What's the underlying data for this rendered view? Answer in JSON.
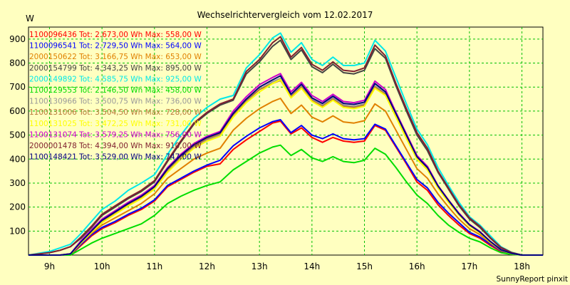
{
  "chart_data": {
    "type": "line",
    "title": "Wechselrichtervergleich vom 12.02.2017",
    "ylabel": "W",
    "xlabel": "",
    "footer": "SunnyReport pinxit",
    "xlim": [
      8.6,
      18.4
    ],
    "ylim": [
      0,
      950
    ],
    "x_ticks": [
      9,
      10,
      11,
      12,
      13,
      14,
      15,
      16,
      17,
      18
    ],
    "x_tick_labels": [
      "9h",
      "10h",
      "11h",
      "12h",
      "13h",
      "14h",
      "15h",
      "16h",
      "17h",
      "18h"
    ],
    "y_ticks": [
      100,
      200,
      300,
      400,
      500,
      600,
      700,
      800,
      900
    ],
    "y_tick_labels": [
      "100",
      "200",
      "300",
      "400",
      "500",
      "600",
      "700",
      "800",
      "900"
    ],
    "grid": true,
    "legend_position": "top-left",
    "x": [
      8.6,
      9.0,
      9.2,
      9.4,
      9.6,
      9.8,
      10.0,
      10.25,
      10.5,
      10.75,
      11.0,
      11.25,
      11.5,
      11.75,
      12.0,
      12.25,
      12.5,
      12.75,
      13.0,
      13.25,
      13.4,
      13.6,
      13.8,
      14.0,
      14.2,
      14.4,
      14.6,
      14.8,
      15.0,
      15.2,
      15.4,
      15.6,
      15.8,
      16.0,
      16.2,
      16.4,
      16.6,
      16.8,
      17.0,
      17.2,
      17.4,
      17.6,
      17.8,
      18.0,
      18.2,
      18.4
    ],
    "series": [
      {
        "name": "1100096436 Tot: 2.673,00 Wh Max: 558,00 W",
        "color": "#ff0000",
        "values": [
          0,
          0,
          0,
          0,
          40,
          80,
          110,
          135,
          165,
          190,
          225,
          285,
          315,
          345,
          370,
          380,
          440,
          480,
          515,
          550,
          558,
          505,
          530,
          490,
          470,
          490,
          475,
          470,
          475,
          540,
          520,
          450,
          380,
          305,
          270,
          210,
          165,
          125,
          90,
          70,
          40,
          15,
          5,
          0,
          0,
          0
        ]
      },
      {
        "name": "1100096541 Tot: 2.729,50 Wh Max: 564,00 W",
        "color": "#0000ff",
        "values": [
          0,
          0,
          0,
          0,
          45,
          85,
          115,
          140,
          170,
          195,
          230,
          290,
          320,
          350,
          375,
          395,
          455,
          495,
          530,
          556,
          564,
          510,
          540,
          500,
          485,
          505,
          485,
          480,
          485,
          545,
          525,
          455,
          385,
          315,
          280,
          220,
          175,
          135,
          95,
          75,
          45,
          18,
          6,
          0,
          0,
          0
        ]
      },
      {
        "name": "2000150622 Tot: 3.166,75 Wh Max: 653,00 W",
        "color": "#e08000",
        "values": [
          0,
          0,
          0,
          0,
          50,
          90,
          125,
          155,
          185,
          215,
          255,
          320,
          360,
          400,
          425,
          445,
          520,
          570,
          610,
          640,
          653,
          590,
          625,
          575,
          555,
          580,
          555,
          550,
          560,
          630,
          600,
          520,
          440,
          360,
          320,
          255,
          200,
          150,
          110,
          85,
          50,
          20,
          6,
          0,
          0,
          0
        ]
      },
      {
        "name": "2000154799 Tot: 4.343,25 Wh Max: 895,00 W",
        "color": "#444444",
        "values": [
          0,
          10,
          20,
          35,
          70,
          115,
          165,
          200,
          235,
          265,
          305,
          390,
          470,
          545,
          590,
          625,
          645,
          755,
          805,
          870,
          895,
          815,
          855,
          785,
          760,
          795,
          760,
          755,
          770,
          860,
          820,
          705,
          600,
          500,
          435,
          345,
          275,
          205,
          150,
          115,
          70,
          30,
          10,
          0,
          0,
          0
        ]
      },
      {
        "name": "2000149892 Tot: 4.585,75 Wh Max: 925,00 W",
        "color": "#00e8e8",
        "values": [
          0,
          15,
          30,
          45,
          90,
          140,
          190,
          225,
          270,
          300,
          335,
          420,
          500,
          570,
          615,
          650,
          665,
          780,
          835,
          905,
          925,
          845,
          885,
          815,
          790,
          825,
          790,
          790,
          800,
          895,
          850,
          740,
          630,
          525,
          460,
          365,
          290,
          220,
          160,
          125,
          80,
          35,
          12,
          0,
          0,
          0
        ]
      },
      {
        "name": "1100129553 Tot: 2.146,50 Wh Max: 458,00 W",
        "color": "#00dd00",
        "values": [
          0,
          0,
          0,
          0,
          25,
          50,
          70,
          90,
          110,
          130,
          165,
          215,
          245,
          270,
          290,
          305,
          355,
          390,
          425,
          450,
          458,
          415,
          440,
          405,
          390,
          410,
          390,
          385,
          395,
          445,
          420,
          365,
          305,
          250,
          215,
          165,
          125,
          95,
          70,
          55,
          30,
          10,
          3,
          0,
          0,
          0
        ]
      },
      {
        "name": "1100130966 Tot: 3.500,75 Wh Max: 736,00 W",
        "color": "#999999",
        "values": [
          0,
          0,
          0,
          5,
          55,
          100,
          140,
          175,
          210,
          240,
          280,
          350,
          405,
          450,
          480,
          500,
          580,
          640,
          690,
          722,
          736,
          665,
          705,
          650,
          625,
          655,
          625,
          620,
          630,
          705,
          675,
          585,
          495,
          405,
          360,
          285,
          225,
          170,
          125,
          95,
          55,
          22,
          7,
          0,
          0,
          0
        ]
      },
      {
        "name": "1100131006 Tot: 3.504,50 Wh Max: 728,00 W",
        "color": "#b87838",
        "values": [
          0,
          0,
          0,
          5,
          55,
          100,
          140,
          175,
          210,
          240,
          285,
          355,
          410,
          455,
          485,
          505,
          585,
          645,
          690,
          715,
          728,
          660,
          700,
          645,
          620,
          650,
          620,
          615,
          625,
          700,
          670,
          580,
          490,
          405,
          360,
          285,
          225,
          170,
          125,
          95,
          55,
          22,
          7,
          0,
          0,
          0
        ]
      },
      {
        "name": "1100131025 Tot: 3.472,25 Wh Max: 731,00 W",
        "color": "#ffff00",
        "values": [
          0,
          0,
          0,
          5,
          50,
          95,
          135,
          170,
          205,
          235,
          275,
          345,
          400,
          445,
          475,
          495,
          575,
          635,
          680,
          715,
          731,
          655,
          695,
          640,
          615,
          645,
          615,
          610,
          620,
          695,
          665,
          575,
          485,
          400,
          355,
          280,
          220,
          168,
          122,
          93,
          53,
          21,
          6,
          0,
          0,
          0
        ]
      },
      {
        "name": "1100131074 Tot: 3.579,25 Wh Max: 756,00 W",
        "color": "#cc00cc",
        "values": [
          0,
          0,
          0,
          5,
          60,
          105,
          150,
          185,
          220,
          250,
          290,
          365,
          420,
          465,
          495,
          515,
          600,
          660,
          710,
          740,
          756,
          680,
          720,
          665,
          640,
          670,
          640,
          635,
          645,
          725,
          690,
          595,
          505,
          415,
          370,
          290,
          230,
          175,
          128,
          98,
          57,
          23,
          7,
          0,
          0,
          0
        ]
      },
      {
        "name": "2000001478 Tot: 4.394,00 Wh Max: 910,00 W",
        "color": "#802030",
        "values": [
          0,
          10,
          20,
          35,
          75,
          120,
          170,
          205,
          240,
          270,
          310,
          395,
          475,
          550,
          595,
          630,
          650,
          765,
          815,
          885,
          910,
          825,
          865,
          795,
          770,
          805,
          770,
          765,
          780,
          875,
          830,
          715,
          610,
          510,
          445,
          350,
          280,
          210,
          155,
          120,
          72,
          32,
          11,
          0,
          0,
          0
        ]
      },
      {
        "name": "1100148421 Tot: 3.529,00 Wh Max: 747,00 W",
        "color": "#000080",
        "values": [
          0,
          0,
          0,
          5,
          55,
          100,
          145,
          180,
          215,
          245,
          285,
          360,
          415,
          460,
          490,
          510,
          590,
          650,
          700,
          730,
          747,
          670,
          712,
          655,
          632,
          662,
          632,
          628,
          637,
          715,
          680,
          590,
          500,
          410,
          365,
          288,
          228,
          172,
          126,
          96,
          56,
          22,
          7,
          0,
          0,
          0
        ]
      }
    ]
  }
}
